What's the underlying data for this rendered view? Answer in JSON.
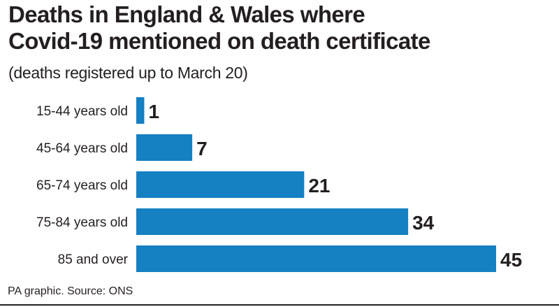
{
  "header": {
    "title_line1": "Deaths in England & Wales where",
    "title_line2": "Covid-19 mentioned on death certificate",
    "subtitle": "(deaths registered up to March 20)"
  },
  "footer": {
    "source": "PA graphic. Source: ONS"
  },
  "colors": {
    "bar": "#1580c2",
    "text": "#231f20"
  },
  "chart_data": {
    "type": "bar",
    "orientation": "horizontal",
    "categories": [
      "15-44 years old",
      "45-64 years old",
      "65-74 years old",
      "75-84 years old",
      "85 and over"
    ],
    "values": [
      1,
      7,
      21,
      34,
      45
    ],
    "data_labels": [
      "1",
      "7",
      "21",
      "34",
      "45"
    ],
    "title": "Deaths in England & Wales where Covid-19 mentioned on death certificate",
    "subtitle": "(deaths registered up to March 20)",
    "xlabel": "",
    "ylabel": "",
    "grid": false,
    "legend": "none"
  }
}
